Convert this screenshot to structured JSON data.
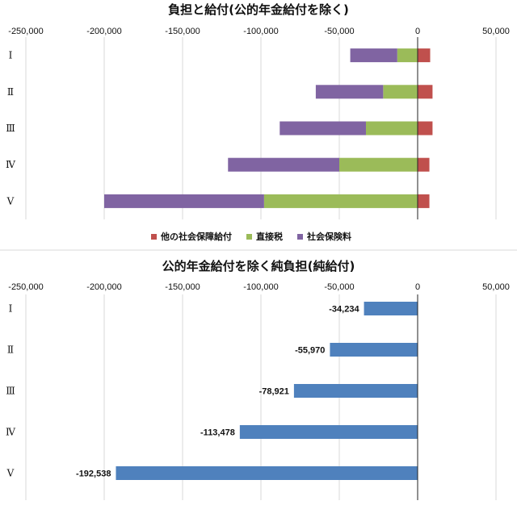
{
  "chart_data": [
    {
      "type": "bar",
      "orientation": "horizontal",
      "stacked": true,
      "title": "負担と給付(公的年金給付を除く)",
      "categories": [
        "Ⅰ",
        "Ⅱ",
        "Ⅲ",
        "Ⅳ",
        "Ⅴ"
      ],
      "xlim": [
        -250000,
        50000
      ],
      "xticks": [
        "-250,000",
        "-200,000",
        "-150,000",
        "-100,000",
        "-50,000",
        "0",
        "50,000"
      ],
      "grid": true,
      "legend_position": "bottom",
      "series": [
        {
          "name": "他の社会保障給付",
          "color": "#c0504d",
          "values": [
            8000,
            9500,
            9500,
            7500,
            7500
          ]
        },
        {
          "name": "直接税",
          "color": "#9bbb59",
          "values": [
            -13000,
            -22000,
            -33000,
            -50000,
            -98000
          ]
        },
        {
          "name": "社会保険料",
          "color": "#8064a2",
          "values": [
            -30000,
            -43000,
            -55000,
            -71000,
            -102000
          ]
        }
      ]
    },
    {
      "type": "bar",
      "orientation": "horizontal",
      "title": "公的年金給付を除く純負担(純給付)",
      "categories": [
        "Ⅰ",
        "Ⅱ",
        "Ⅲ",
        "Ⅳ",
        "Ⅴ"
      ],
      "xlim": [
        -250000,
        50000
      ],
      "xticks": [
        "-250,000",
        "-200,000",
        "-150,000",
        "-100,000",
        "-50,000",
        "0",
        "50,000"
      ],
      "grid": true,
      "color": "#4f81bd",
      "values": [
        -34234,
        -55970,
        -78921,
        -113478,
        -192538
      ],
      "data_labels": [
        "-34,234",
        "-55,970",
        "-78,921",
        "-113,478",
        "-192,538"
      ]
    }
  ]
}
